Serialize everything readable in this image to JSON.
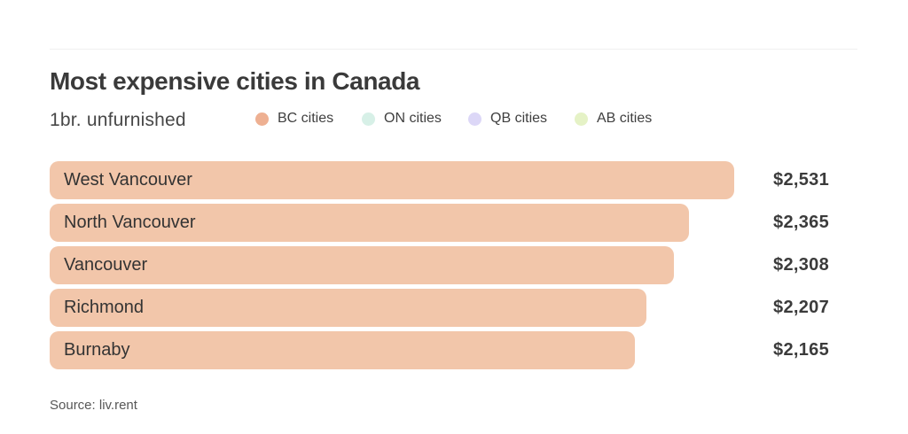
{
  "page": {
    "background_color": "#ffffff",
    "rule_color": "#f0f0f0"
  },
  "header": {
    "title": "Most expensive cities in Canada",
    "subtitle": "1br. unfurnished"
  },
  "legend": {
    "position": "top",
    "items": [
      {
        "label": "BC cities",
        "color": "#eeb092"
      },
      {
        "label": "ON cities",
        "color": "#d7f0e7"
      },
      {
        "label": "QB cities",
        "color": "#dcd7f7"
      },
      {
        "label": "AB cities",
        "color": "#e5f2c6"
      }
    ]
  },
  "chart_data": {
    "type": "bar",
    "orientation": "horizontal",
    "title": "Most expensive cities in Canada",
    "subtitle": "1br. unfurnished",
    "categories": [
      "West Vancouver",
      "North Vancouver",
      "Vancouver",
      "Richmond",
      "Burnaby"
    ],
    "values": [
      2531,
      2365,
      2308,
      2207,
      2165
    ],
    "value_labels": [
      "$2,531",
      "$2,365",
      "$2,308",
      "$2,207",
      "$2,165"
    ],
    "series_name": "BC cities",
    "bar_color": "#f2c6aa",
    "text_color": "#333333",
    "value_color": "#3b3b3b",
    "xlim": [
      0,
      2531
    ],
    "grid": false,
    "legend_position": "top"
  },
  "footer": {
    "source": "Source: liv.rent"
  }
}
